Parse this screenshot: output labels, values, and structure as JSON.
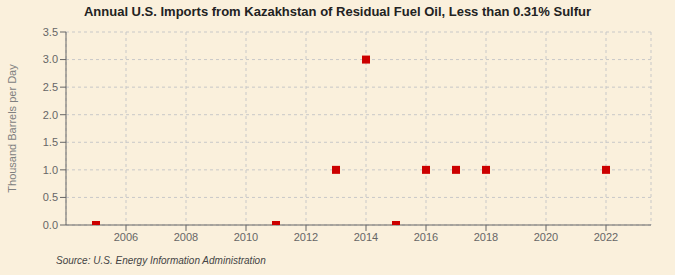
{
  "chart_data": {
    "type": "scatter",
    "title": "Annual U.S. Imports from Kazakhstan of Residual Fuel Oil, Less than 0.31% Sulfur",
    "ylabel": "Thousand Barrels per Day",
    "annotations": [
      "Source: U.S. Energy Information Administration"
    ],
    "x": [
      2005,
      2011,
      2013,
      2014,
      2015,
      2016,
      2017,
      2018,
      2022
    ],
    "values": [
      0.0,
      0.0,
      1.0,
      3.0,
      0.0,
      1.0,
      1.0,
      1.0,
      1.0
    ],
    "color": "#cc0000",
    "marker": "square",
    "xlim": [
      2004.0,
      2023.5
    ],
    "ylim": [
      0.0,
      3.5
    ],
    "xticks": [
      2006,
      2008,
      2010,
      2012,
      2014,
      2016,
      2018,
      2020,
      2022
    ],
    "yticks": [
      {
        "value": 0,
        "label": "0.0"
      },
      0.5,
      {
        "value": 1,
        "label": "1.0"
      },
      1.5,
      {
        "value": 2,
        "label": "2.0"
      },
      2.5,
      {
        "value": 3,
        "label": "3.0"
      },
      3.5
    ],
    "grid": true
  }
}
